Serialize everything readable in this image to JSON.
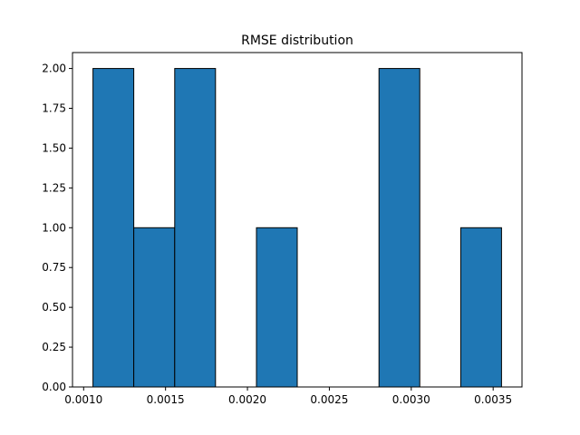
{
  "chart_data": {
    "type": "bar",
    "title": "RMSE distribution",
    "xlabel": "",
    "ylabel": "",
    "bins": [
      {
        "start": 0.001057,
        "end": 0.001306,
        "count": 2
      },
      {
        "start": 0.001306,
        "end": 0.001556,
        "count": 1
      },
      {
        "start": 0.001556,
        "end": 0.001805,
        "count": 2
      },
      {
        "start": 0.001805,
        "end": 0.002055,
        "count": 0
      },
      {
        "start": 0.002055,
        "end": 0.002304,
        "count": 1
      },
      {
        "start": 0.002304,
        "end": 0.002554,
        "count": 0
      },
      {
        "start": 0.002554,
        "end": 0.002803,
        "count": 0
      },
      {
        "start": 0.002803,
        "end": 0.003052,
        "count": 2
      },
      {
        "start": 0.003052,
        "end": 0.003302,
        "count": 0
      },
      {
        "start": 0.003302,
        "end": 0.003551,
        "count": 1
      }
    ],
    "xlim": [
      0.000932,
      0.003676
    ],
    "ylim": [
      0,
      2.1
    ],
    "xticks": [
      "0.0010",
      "0.0015",
      "0.0020",
      "0.0025",
      "0.0030",
      "0.0035"
    ],
    "xtick_values": [
      0.001,
      0.0015,
      0.002,
      0.0025,
      0.003,
      0.0035
    ],
    "yticks": [
      "0.00",
      "0.25",
      "0.50",
      "0.75",
      "1.00",
      "1.25",
      "1.50",
      "1.75",
      "2.00"
    ],
    "ytick_values": [
      0,
      0.25,
      0.5,
      0.75,
      1.0,
      1.25,
      1.5,
      1.75,
      2.0
    ],
    "grid": false,
    "legend": "none",
    "colors": {
      "bar_fill": "#1f77b4",
      "bar_edge": "#000000",
      "axis": "#000000"
    }
  }
}
